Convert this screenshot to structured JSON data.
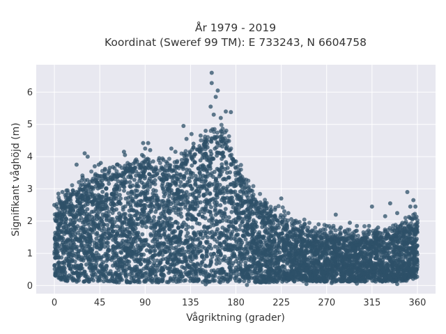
{
  "chart_data": {
    "type": "scatter",
    "title": "År 1979 - 2019",
    "subtitle": "Koordinat (Sweref 99 TM): E 733243, N 6604758",
    "xlabel": "Vågriktning (grader)",
    "ylabel": "Signifikant våghöjd (m)",
    "xlim": [
      -18,
      378
    ],
    "ylim": [
      -0.25,
      6.85
    ],
    "xticks": [
      0,
      45,
      90,
      135,
      180,
      225,
      270,
      315,
      360
    ],
    "yticks": [
      0,
      1,
      2,
      3,
      4,
      5,
      6
    ],
    "grid": true,
    "background": "#e8e8f0",
    "grid_color": "#ffffff",
    "marker_color": "#2e5068",
    "envelope": {
      "x": [
        0,
        10,
        20,
        30,
        40,
        50,
        60,
        70,
        80,
        90,
        100,
        110,
        120,
        130,
        140,
        150,
        160,
        170,
        180,
        190,
        200,
        210,
        220,
        230,
        240,
        250,
        260,
        270,
        280,
        290,
        300,
        310,
        320,
        330,
        340,
        350,
        360
      ],
      "upper": [
        2.0,
        2.55,
        2.8,
        3.0,
        3.25,
        3.3,
        3.3,
        3.5,
        3.6,
        3.65,
        3.5,
        3.4,
        3.55,
        3.8,
        4.0,
        4.3,
        4.6,
        4.45,
        3.6,
        3.0,
        2.5,
        2.25,
        2.05,
        1.85,
        1.7,
        1.6,
        1.5,
        1.45,
        1.45,
        1.45,
        1.4,
        1.4,
        1.45,
        1.5,
        1.6,
        1.7,
        1.9
      ],
      "lower": [
        0.25,
        0.15,
        0.12,
        0.1,
        0.1,
        0.1,
        0.1,
        0.1,
        0.1,
        0.1,
        0.1,
        0.1,
        0.1,
        0.1,
        0.1,
        0.1,
        0.1,
        0.1,
        0.1,
        0.1,
        0.1,
        0.1,
        0.1,
        0.12,
        0.12,
        0.12,
        0.12,
        0.12,
        0.12,
        0.12,
        0.12,
        0.12,
        0.12,
        0.12,
        0.12,
        0.15,
        0.25
      ]
    },
    "outliers": [
      {
        "x": 156,
        "y": 6.6
      },
      {
        "x": 156,
        "y": 6.28
      },
      {
        "x": 162,
        "y": 6.05
      },
      {
        "x": 160,
        "y": 5.85
      },
      {
        "x": 155,
        "y": 5.55
      },
      {
        "x": 170,
        "y": 5.4
      },
      {
        "x": 165,
        "y": 5.2
      },
      {
        "x": 175,
        "y": 5.38
      },
      {
        "x": 158,
        "y": 5.3
      },
      {
        "x": 128,
        "y": 4.95
      },
      {
        "x": 136,
        "y": 4.7
      },
      {
        "x": 145,
        "y": 4.65
      },
      {
        "x": 131,
        "y": 4.55
      },
      {
        "x": 150,
        "y": 4.8
      },
      {
        "x": 138,
        "y": 4.4
      },
      {
        "x": 88,
        "y": 4.42
      },
      {
        "x": 93,
        "y": 4.42
      },
      {
        "x": 95,
        "y": 4.2
      },
      {
        "x": 90,
        "y": 4.25
      },
      {
        "x": 87,
        "y": 4.05
      },
      {
        "x": 69,
        "y": 4.15
      },
      {
        "x": 70,
        "y": 4.05
      },
      {
        "x": 116,
        "y": 4.25
      },
      {
        "x": 120,
        "y": 4.15
      },
      {
        "x": 104,
        "y": 3.95
      },
      {
        "x": 108,
        "y": 3.9
      },
      {
        "x": 30,
        "y": 4.1
      },
      {
        "x": 33,
        "y": 4.0
      },
      {
        "x": 28,
        "y": 3.35
      },
      {
        "x": 40,
        "y": 3.7
      },
      {
        "x": 44,
        "y": 3.75
      },
      {
        "x": 46,
        "y": 3.8
      },
      {
        "x": 22,
        "y": 3.75
      },
      {
        "x": 55,
        "y": 3.65
      },
      {
        "x": 62,
        "y": 3.75
      },
      {
        "x": 78,
        "y": 3.55
      },
      {
        "x": 82,
        "y": 3.85
      },
      {
        "x": 98,
        "y": 3.85
      },
      {
        "x": 112,
        "y": 3.8
      },
      {
        "x": 125,
        "y": 3.7
      },
      {
        "x": 180,
        "y": 3.85
      },
      {
        "x": 183,
        "y": 3.5
      },
      {
        "x": 188,
        "y": 3.2
      },
      {
        "x": 190,
        "y": 2.9
      },
      {
        "x": 200,
        "y": 2.6
      },
      {
        "x": 205,
        "y": 2.5
      },
      {
        "x": 215,
        "y": 2.35
      },
      {
        "x": 225,
        "y": 2.7
      },
      {
        "x": 228,
        "y": 2.3
      },
      {
        "x": 232,
        "y": 2.25
      },
      {
        "x": 238,
        "y": 2.0
      },
      {
        "x": 248,
        "y": 1.9
      },
      {
        "x": 262,
        "y": 1.9
      },
      {
        "x": 270,
        "y": 1.85
      },
      {
        "x": 279,
        "y": 2.2
      },
      {
        "x": 284,
        "y": 1.8
      },
      {
        "x": 293,
        "y": 1.95
      },
      {
        "x": 300,
        "y": 1.85
      },
      {
        "x": 312,
        "y": 1.85
      },
      {
        "x": 315,
        "y": 2.45
      },
      {
        "x": 321,
        "y": 1.8
      },
      {
        "x": 328,
        "y": 2.15
      },
      {
        "x": 333,
        "y": 2.55
      },
      {
        "x": 340,
        "y": 2.25
      },
      {
        "x": 350,
        "y": 2.9
      },
      {
        "x": 353,
        "y": 2.45
      },
      {
        "x": 356,
        "y": 2.65
      },
      {
        "x": 358,
        "y": 2.45
      },
      {
        "x": 355,
        "y": 2.05
      },
      {
        "x": 4,
        "y": 2.85
      },
      {
        "x": 8,
        "y": 2.9
      },
      {
        "x": 2,
        "y": 2.45
      },
      {
        "x": 12,
        "y": 2.95
      },
      {
        "x": 5,
        "y": 2.65
      },
      {
        "x": 360,
        "y": 1.95
      },
      {
        "x": 0,
        "y": 2.5
      },
      {
        "x": 250,
        "y": 0.05
      },
      {
        "x": 275,
        "y": 0.08
      },
      {
        "x": 300,
        "y": 0.06
      },
      {
        "x": 340,
        "y": 0.05
      },
      {
        "x": 191,
        "y": 0.02
      },
      {
        "x": 150,
        "y": 0.04
      }
    ]
  }
}
